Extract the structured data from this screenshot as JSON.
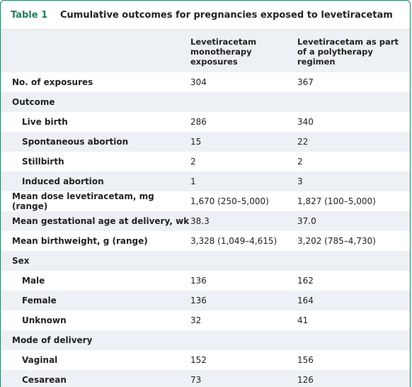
{
  "header": {
    "label": "Table 1",
    "title": "Cumulative outcomes for pregnancies exposed to levetiracetam"
  },
  "table": {
    "columns": [
      "Levetiracetam monotherapy exposures",
      "Levetiracetam as part of a polytherapy regimen"
    ],
    "rows": [
      {
        "label": "No. of exposures",
        "level": 0,
        "cells": [
          "304",
          "367"
        ]
      },
      {
        "label": "Outcome",
        "level": 0,
        "cells": [
          null,
          null
        ]
      },
      {
        "label": "Live birth",
        "level": 1,
        "cells": [
          "286",
          "340"
        ]
      },
      {
        "label": "Spontaneous abortion",
        "level": 1,
        "cells": [
          "15",
          "22"
        ]
      },
      {
        "label": "Stillbirth",
        "level": 1,
        "cells": [
          "2",
          "2"
        ]
      },
      {
        "label": "Induced abortion",
        "level": 1,
        "cells": [
          "1",
          "3"
        ]
      },
      {
        "label": "Mean dose levetiracetam, mg (range)",
        "level": 0,
        "cells": [
          "1,670 (250–5,000)",
          "1,827 (100–5,000)"
        ]
      },
      {
        "label": "Mean gestational age at delivery, wk",
        "level": 0,
        "cells": [
          "38.3",
          "37.0"
        ]
      },
      {
        "label": "Mean birthweight, g (range)",
        "level": 0,
        "cells": [
          "3,328 (1,049–4,615)",
          "3,202 (785–4,730)"
        ]
      },
      {
        "label": "Sex",
        "level": 0,
        "cells": [
          null,
          null
        ]
      },
      {
        "label": "Male",
        "level": 1,
        "cells": [
          "136",
          "162"
        ]
      },
      {
        "label": "Female",
        "level": 1,
        "cells": [
          "136",
          "164"
        ]
      },
      {
        "label": "Unknown",
        "level": 1,
        "cells": [
          "32",
          "41"
        ]
      },
      {
        "label": "Mode of delivery",
        "level": 0,
        "cells": [
          null,
          null
        ]
      },
      {
        "label": "Vaginal",
        "level": 1,
        "cells": [
          "152",
          "156"
        ]
      },
      {
        "label": "Cesarean",
        "level": 1,
        "cells": [
          "73",
          "126"
        ]
      }
    ]
  }
}
